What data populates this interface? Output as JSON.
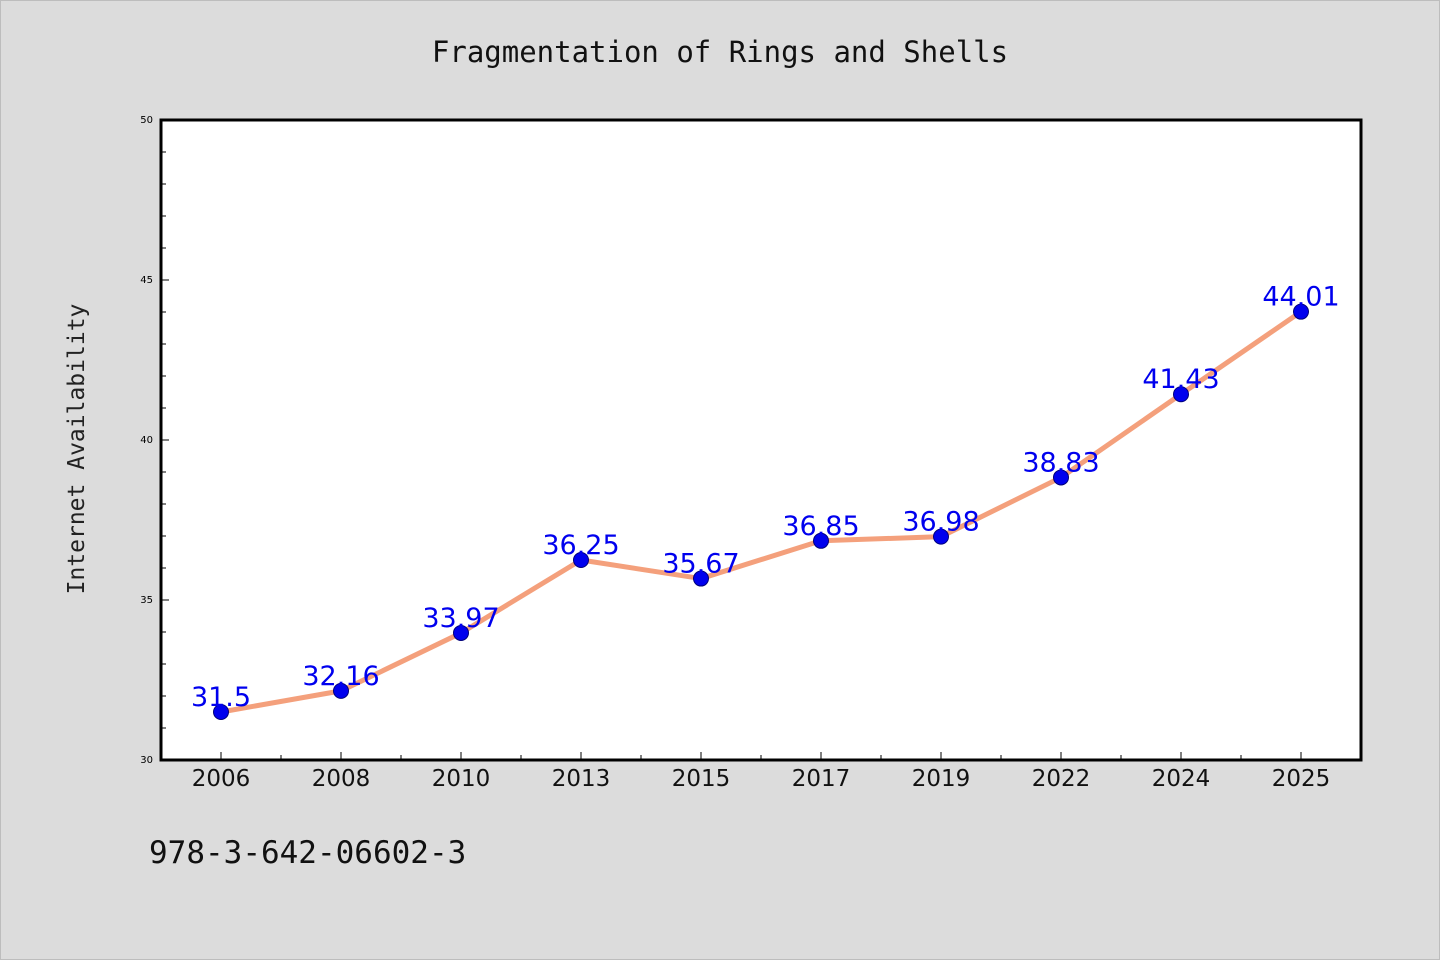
{
  "chart_data": {
    "type": "line",
    "title": "Fragmentation of Rings and Shells",
    "xlabel": "",
    "ylabel": "Internet Availability",
    "categories": [
      "2006",
      "2008",
      "2010",
      "2013",
      "2015",
      "2017",
      "2019",
      "2022",
      "2024",
      "2025"
    ],
    "series": [
      {
        "values": [
          31.5,
          32.16,
          33.97,
          36.25,
          35.67,
          36.85,
          36.98,
          38.83,
          41.43,
          44.01
        ],
        "labels": [
          "31.5",
          "32.16",
          "33.97",
          "36.25",
          "35.67",
          "36.85",
          "36.98",
          "38.83",
          "41.43",
          "44.01"
        ]
      }
    ],
    "ylim": [
      30,
      50
    ],
    "y_ticks": [
      "30",
      "35",
      "40",
      "45",
      "50"
    ],
    "grid": false,
    "legend": "none",
    "colors": {
      "line": "#f4a07c",
      "marker": "#0000ee",
      "marker_edge": "#00007a",
      "data_label": "#0000ee",
      "plot_background": "#ffffff",
      "figure_background": "#dcdcdc"
    }
  },
  "caption": "978-3-642-06602-3"
}
